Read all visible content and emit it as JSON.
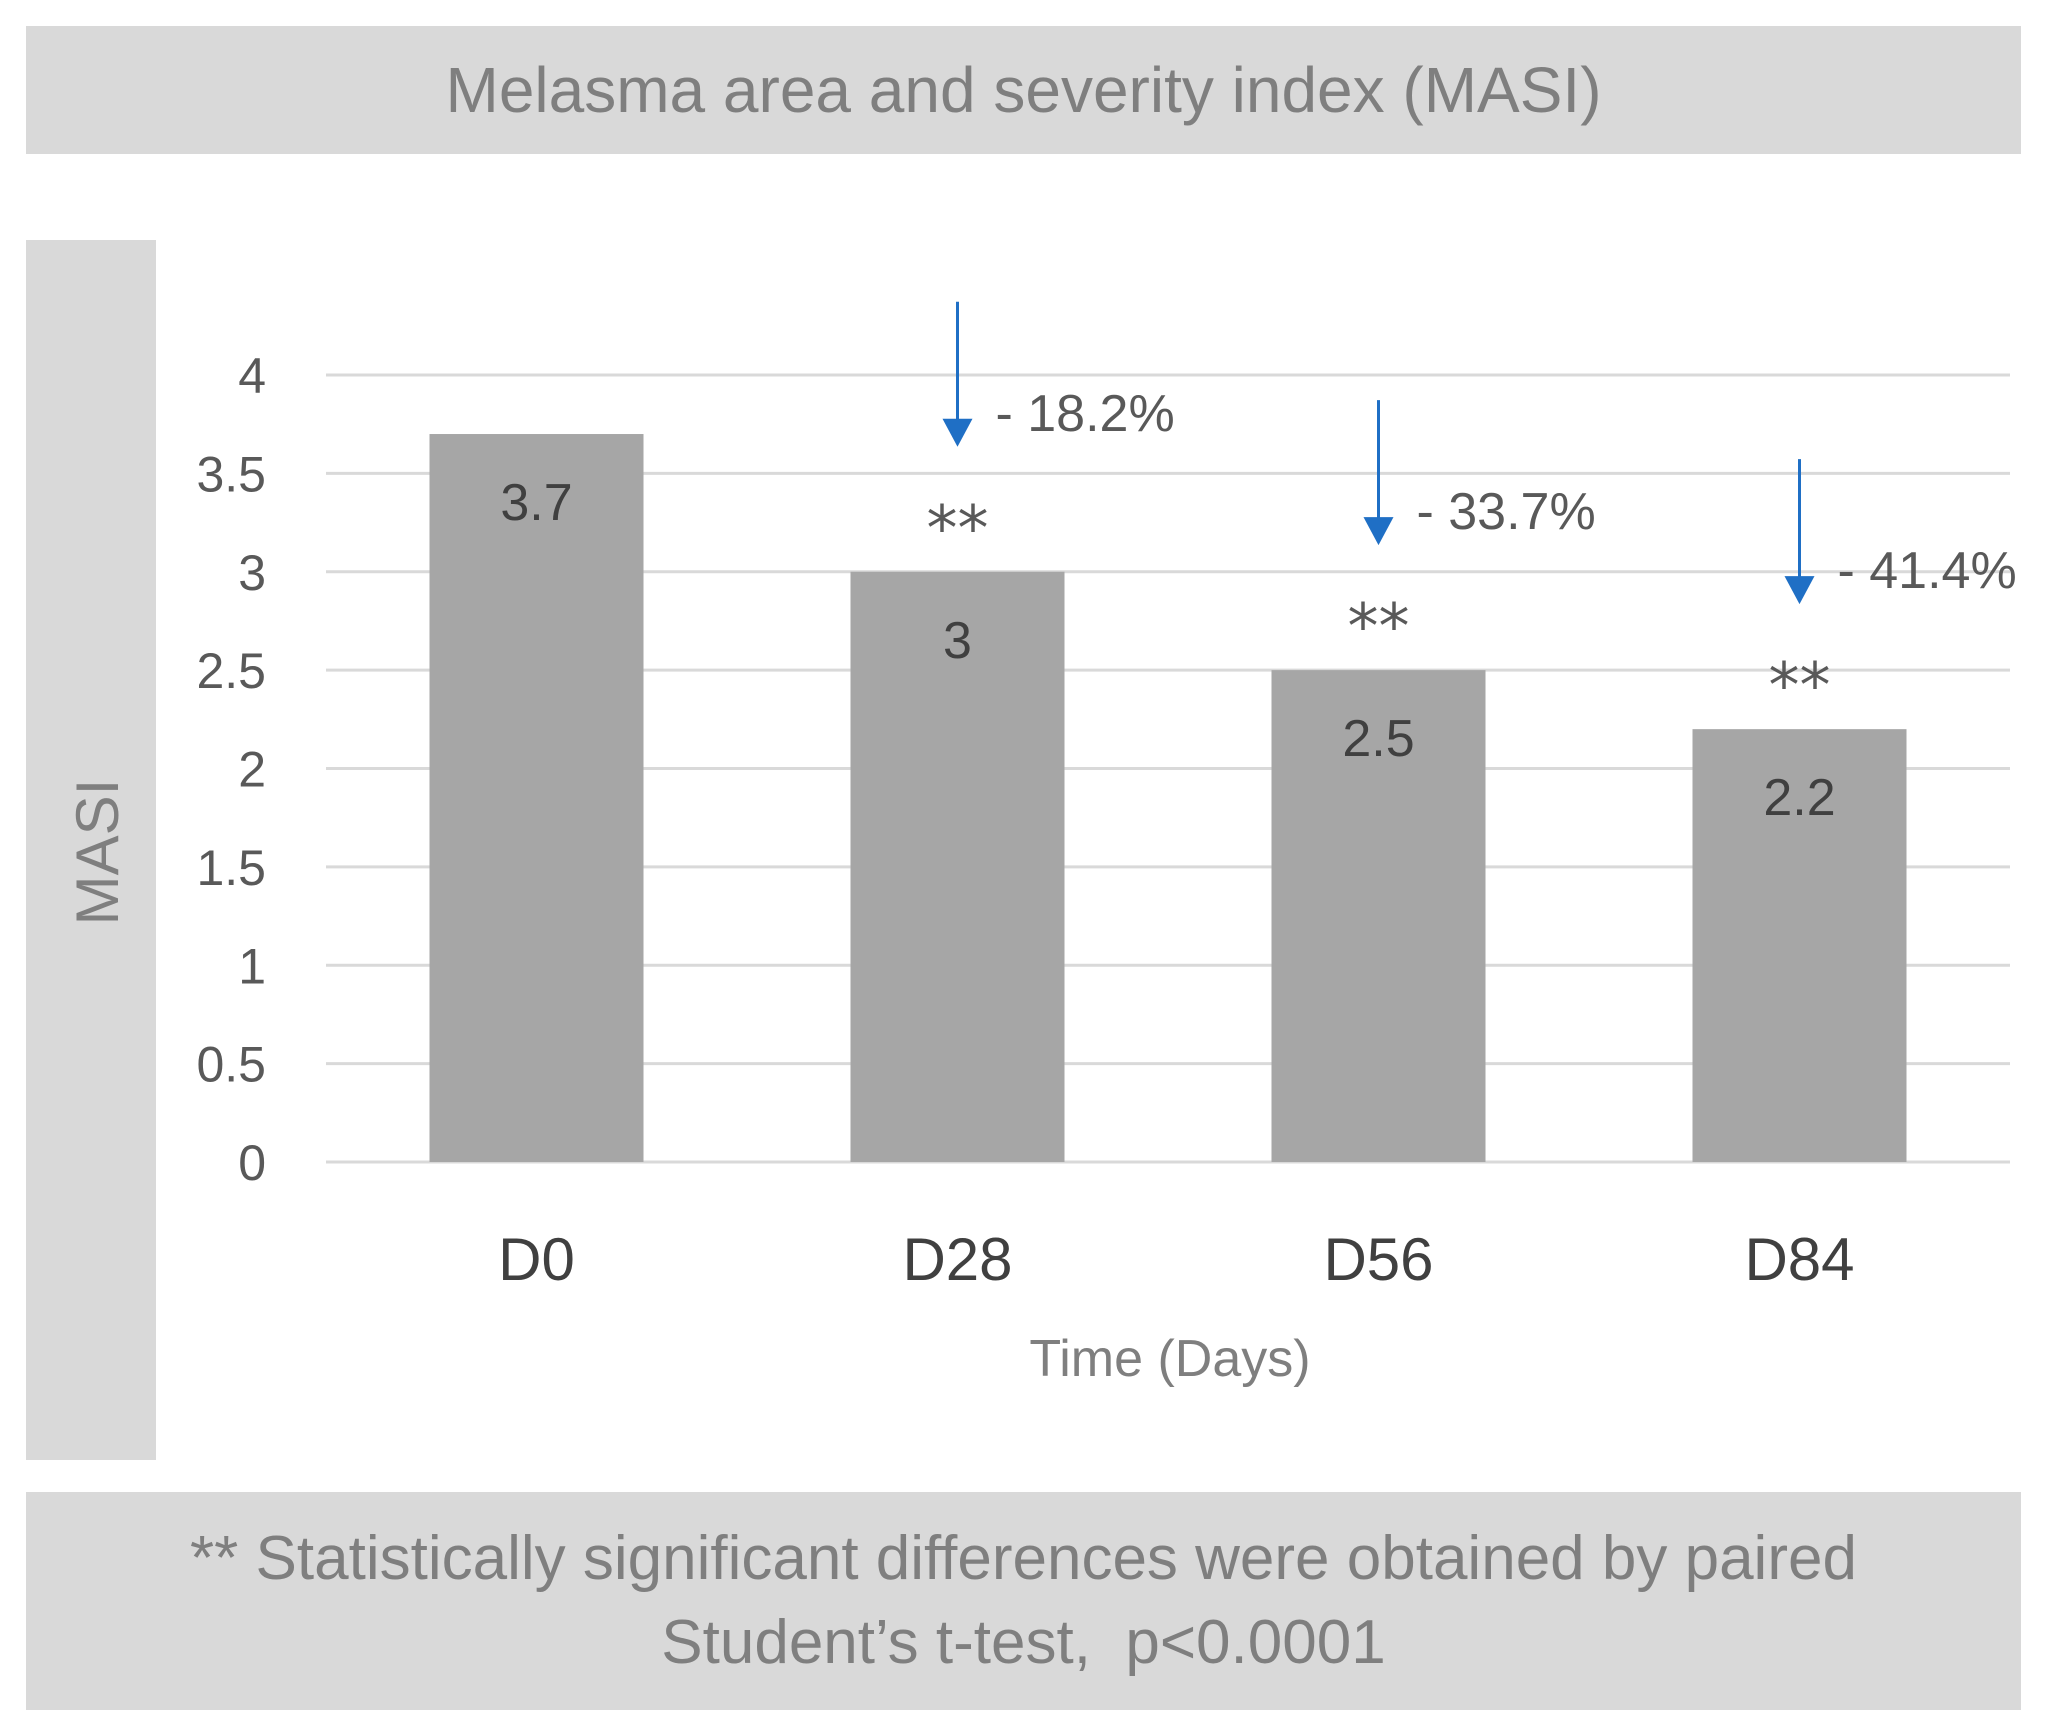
{
  "chart_data": {
    "type": "bar",
    "title": "Melasma area and severity index (MASI)",
    "xlabel": "Time (Days)",
    "ylabel": "MASI",
    "ylim": [
      0,
      4
    ],
    "yticks": [
      0,
      0.5,
      1,
      1.5,
      2,
      2.5,
      3,
      3.5,
      4
    ],
    "ytick_labels": [
      "0",
      "0.5",
      "1",
      "1.5",
      "2",
      "2.5",
      "3",
      "3.5",
      "4"
    ],
    "grid": true,
    "categories": [
      "D0",
      "D28",
      "D56",
      "D84"
    ],
    "values": [
      3.7,
      3.0,
      2.5,
      2.2
    ],
    "data_labels": [
      "3.7",
      "3",
      "2.5",
      "2.2"
    ],
    "significance": [
      "",
      "**",
      "**",
      "**"
    ],
    "changes": [
      "",
      "- 18.2%",
      "- 33.7%",
      "- 41.4%"
    ],
    "bar_color": "#a6a6a6",
    "arrow_color": "#1f6fc5",
    "footnote": [
      "** Statistically significant differences were obtained by paired",
      "Student’s t-test,  p<0.0001"
    ]
  }
}
